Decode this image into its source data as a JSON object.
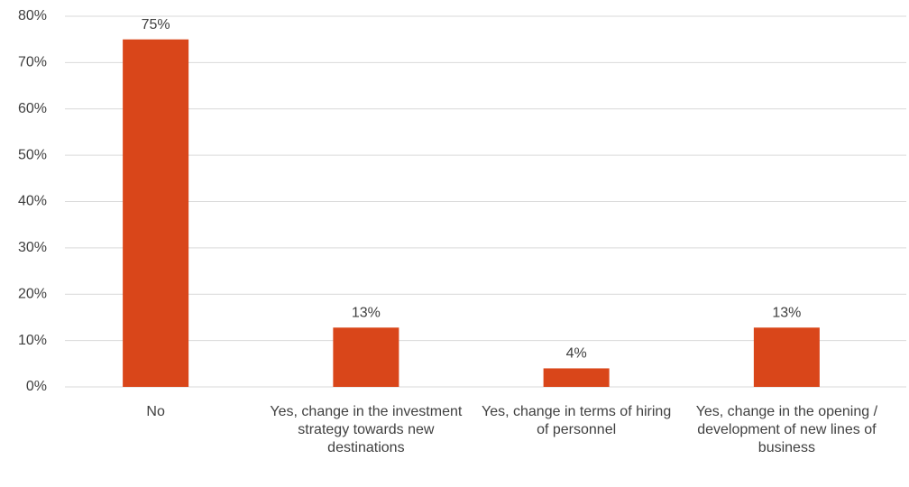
{
  "chart_data": {
    "type": "bar",
    "categories": [
      "No",
      "Yes, change in the investment strategy towards new destinations",
      "Yes, change in terms of hiring of personnel",
      "Yes, change in the opening / development of new lines of business"
    ],
    "values": [
      75,
      12.8,
      4,
      12.8
    ],
    "value_labels": [
      "75%",
      "13%",
      "4%",
      "13%"
    ],
    "color": "#d9461a",
    "ylim": [
      0,
      80
    ],
    "yticks": [
      {
        "value": 0,
        "label": "0%"
      },
      {
        "value": 10,
        "label": "10%"
      },
      {
        "value": 20,
        "label": "20%"
      },
      {
        "value": 30,
        "label": "30%"
      },
      {
        "value": 40,
        "label": "40%"
      },
      {
        "value": 50,
        "label": "50%"
      },
      {
        "value": 60,
        "label": "60%"
      },
      {
        "value": 70,
        "label": "70%"
      },
      {
        "value": 80,
        "label": "80%"
      }
    ],
    "grid": true
  }
}
